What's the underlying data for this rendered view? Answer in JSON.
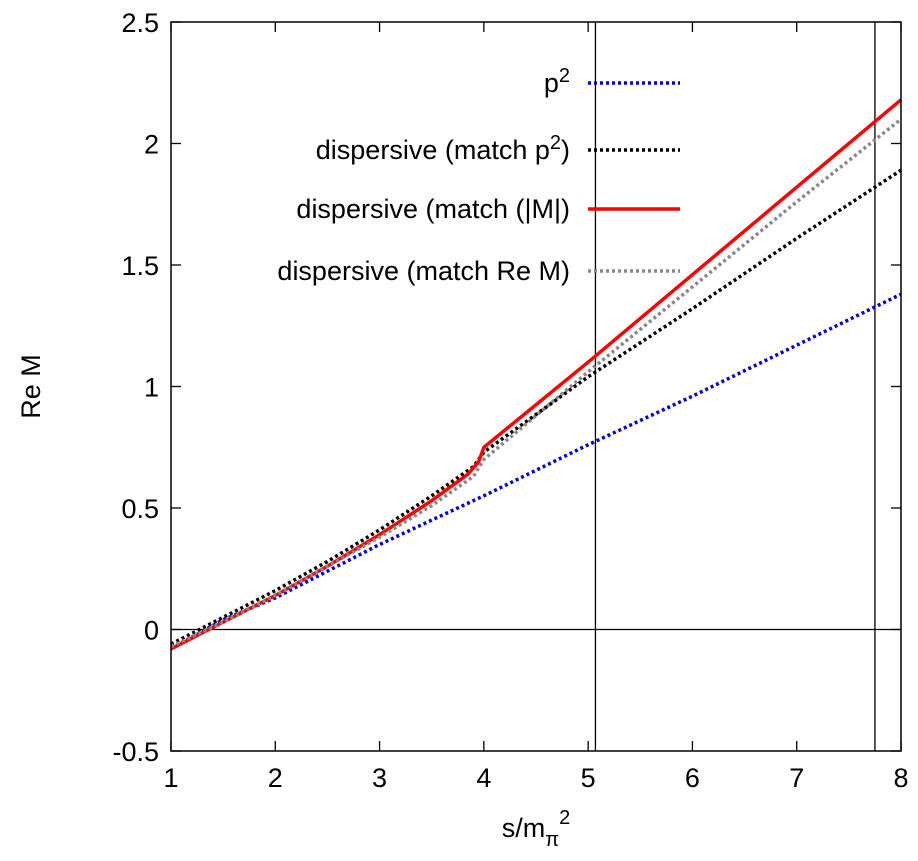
{
  "chart_data": {
    "type": "line",
    "xlabel": {
      "base": "s/m",
      "sub": "π",
      "sup": "2"
    },
    "ylabel": "Re M",
    "xlim": [
      1,
      8
    ],
    "ylim": [
      -0.5,
      2.5
    ],
    "x_ticks": [
      "1",
      "2",
      "3",
      "4",
      "5",
      "6",
      "7",
      "8"
    ],
    "y_ticks": [
      "-0.5",
      "0",
      "0.5",
      "1",
      "1.5",
      "2",
      "2.5"
    ],
    "x_tick_values": [
      1,
      2,
      3,
      4,
      5,
      6,
      7,
      8
    ],
    "y_tick_values": [
      -0.5,
      0,
      0.5,
      1,
      1.5,
      2,
      2.5
    ],
    "reference_lines": {
      "horizontal": [
        0
      ],
      "vertical": [
        5.07,
        7.75
      ]
    },
    "legend": {
      "placement": "top-right",
      "entries": [
        {
          "text": "p",
          "sup": "2",
          "suffix": ""
        },
        {
          "text": "dispersive (match p",
          "sup": "2",
          "suffix": ")"
        },
        {
          "text": "dispersive (match (|M|)",
          "sup": "",
          "suffix": ""
        },
        {
          "text": "dispersive (match Re M)",
          "sup": "",
          "suffix": ""
        }
      ]
    },
    "series": [
      {
        "name": "p^2",
        "color": "#0000dd",
        "style": "dotted",
        "x": [
          1,
          1.5,
          2,
          2.5,
          3,
          3.5,
          4,
          5,
          6,
          7,
          8
        ],
        "y": [
          -0.08,
          0.04,
          0.13,
          0.24,
          0.35,
          0.45,
          0.55,
          0.76,
          0.96,
          1.17,
          1.38
        ]
      },
      {
        "name": "dispersive (match p^2)",
        "color": "#000000",
        "style": "dotted",
        "x": [
          1,
          1.5,
          2,
          2.5,
          3,
          3.5,
          3.9,
          4,
          5,
          6,
          7,
          8
        ],
        "y": [
          -0.06,
          0.05,
          0.16,
          0.28,
          0.41,
          0.55,
          0.67,
          0.73,
          1.04,
          1.32,
          1.61,
          1.89
        ]
      },
      {
        "name": "dispersive (match (|M|)",
        "color": "#ff0000",
        "style": "solid",
        "x": [
          1,
          1.5,
          2,
          2.5,
          3,
          3.5,
          3.85,
          3.95,
          4,
          5,
          6,
          7,
          8
        ],
        "y": [
          -0.08,
          0.03,
          0.14,
          0.26,
          0.39,
          0.53,
          0.64,
          0.69,
          0.75,
          1.1,
          1.46,
          1.82,
          2.18
        ]
      },
      {
        "name": "dispersive (match Re M)",
        "color": "#888888",
        "style": "dotted",
        "x": [
          1,
          1.5,
          2,
          2.5,
          3,
          3.5,
          3.9,
          4,
          5,
          6,
          7,
          8
        ],
        "y": [
          -0.07,
          0.03,
          0.14,
          0.26,
          0.38,
          0.51,
          0.63,
          0.7,
          1.06,
          1.41,
          1.76,
          2.1
        ]
      }
    ]
  }
}
